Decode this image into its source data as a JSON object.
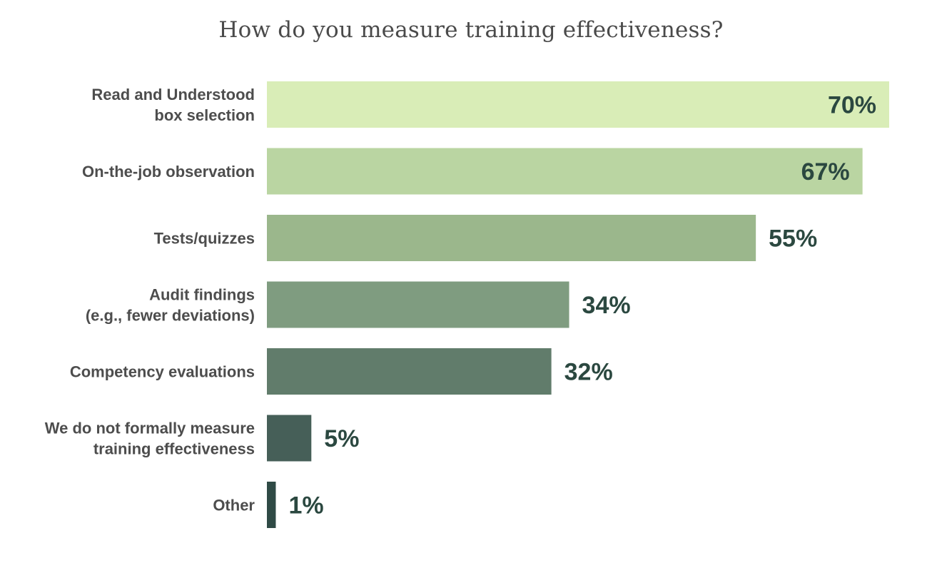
{
  "chart_data": {
    "type": "bar",
    "orientation": "horizontal",
    "title": "How do you measure training effectiveness?",
    "categories": [
      [
        "Read and Understood",
        "box selection"
      ],
      [
        "On-the-job observation"
      ],
      [
        "Tests/quizzes"
      ],
      [
        "Audit findings",
        "(e.g., fewer deviations)"
      ],
      [
        "Competency evaluations"
      ],
      [
        "We do not formally measure",
        "training effectiveness"
      ],
      [
        "Other"
      ]
    ],
    "values": [
      70,
      67,
      55,
      34,
      32,
      5,
      1
    ],
    "value_labels": [
      "70%",
      "67%",
      "55%",
      "34%",
      "32%",
      "5%",
      "1%"
    ],
    "colors": [
      "#d9edb7",
      "#bad5a2",
      "#9bb78c",
      "#7f9c80",
      "#617c6b",
      "#465f58",
      "#2f4a45"
    ],
    "xlim": [
      0,
      70
    ],
    "grid": false,
    "legend": "none"
  }
}
